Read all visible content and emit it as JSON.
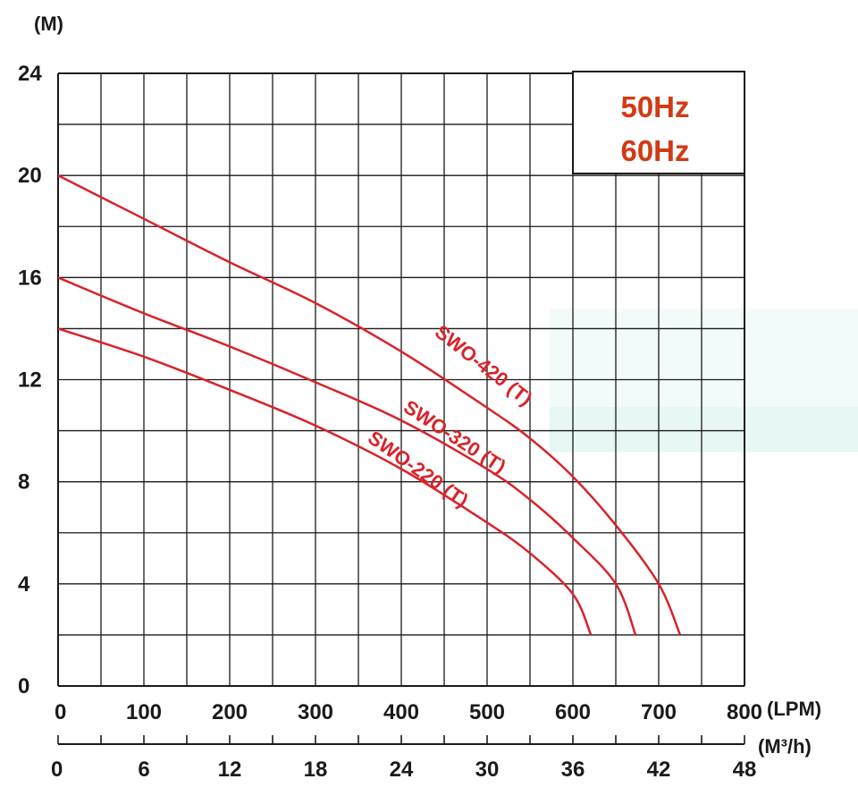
{
  "chart_data": {
    "type": "line",
    "title": "",
    "ylabel": "(M)",
    "xlabel": "(LPM)",
    "x2label": "(M³/h)",
    "xlim": [
      0,
      800
    ],
    "ylim": [
      0,
      24
    ],
    "x_ticks": [
      0,
      100,
      200,
      300,
      400,
      500,
      600,
      700,
      800
    ],
    "y_ticks": [
      0,
      4,
      8,
      12,
      16,
      20,
      24
    ],
    "x2_ticks": [
      0,
      6,
      12,
      18,
      24,
      30,
      36,
      42,
      48
    ],
    "grid": true,
    "legend": {
      "position": "top-right",
      "entries": [
        "50Hz",
        "60Hz"
      ]
    },
    "series": [
      {
        "name": "SWO-420 (T)",
        "x": [
          0,
          100,
          200,
          300,
          400,
          500,
          550,
          600,
          650,
          700,
          725
        ],
        "y": [
          20,
          18.3,
          16.6,
          15,
          13.1,
          10.9,
          9.7,
          8.2,
          6.3,
          4,
          2
        ]
      },
      {
        "name": "SWO-320 (T)",
        "x": [
          0,
          100,
          200,
          300,
          400,
          500,
          550,
          600,
          650,
          673
        ],
        "y": [
          16,
          14.6,
          13.3,
          11.9,
          10.4,
          8.5,
          7.3,
          5.8,
          4,
          2
        ]
      },
      {
        "name": "SWO-220 (T)",
        "x": [
          0,
          100,
          200,
          300,
          400,
          500,
          550,
          600,
          621
        ],
        "y": [
          14,
          12.9,
          11.6,
          10.2,
          8.5,
          6.4,
          5.2,
          3.6,
          2
        ]
      }
    ]
  },
  "colors": {
    "curve": "#d8232a",
    "legend_text": "#d23a15",
    "grid": "#1a1a1a",
    "text": "#1a1a1a"
  }
}
